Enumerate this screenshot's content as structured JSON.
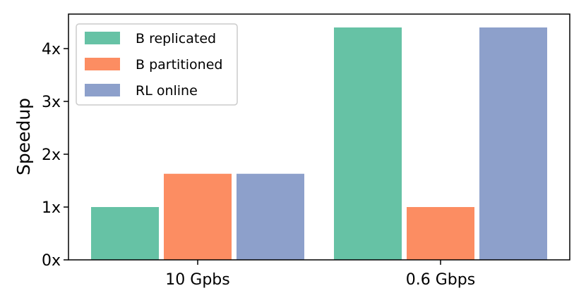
{
  "chart_data": {
    "type": "bar",
    "categories": [
      "10 Gpbs",
      "0.6 Gbps"
    ],
    "series": [
      {
        "name": "B replicated",
        "color": "#66c2a5",
        "values": [
          1.0,
          4.4
        ]
      },
      {
        "name": "B partitioned",
        "color": "#fc8d62",
        "values": [
          1.63,
          1.0
        ]
      },
      {
        "name": "RL online",
        "color": "#8da0cb",
        "values": [
          1.63,
          4.4
        ]
      }
    ],
    "title": "",
    "xlabel": "",
    "ylabel": "Speedup",
    "ylim": [
      0,
      4.4
    ],
    "yticks": [
      0,
      1,
      2,
      3,
      4
    ],
    "ytick_labels": [
      "0x",
      "1x",
      "2x",
      "3x",
      "4x"
    ],
    "grid": false,
    "legend": {
      "placement": "top-left"
    }
  }
}
